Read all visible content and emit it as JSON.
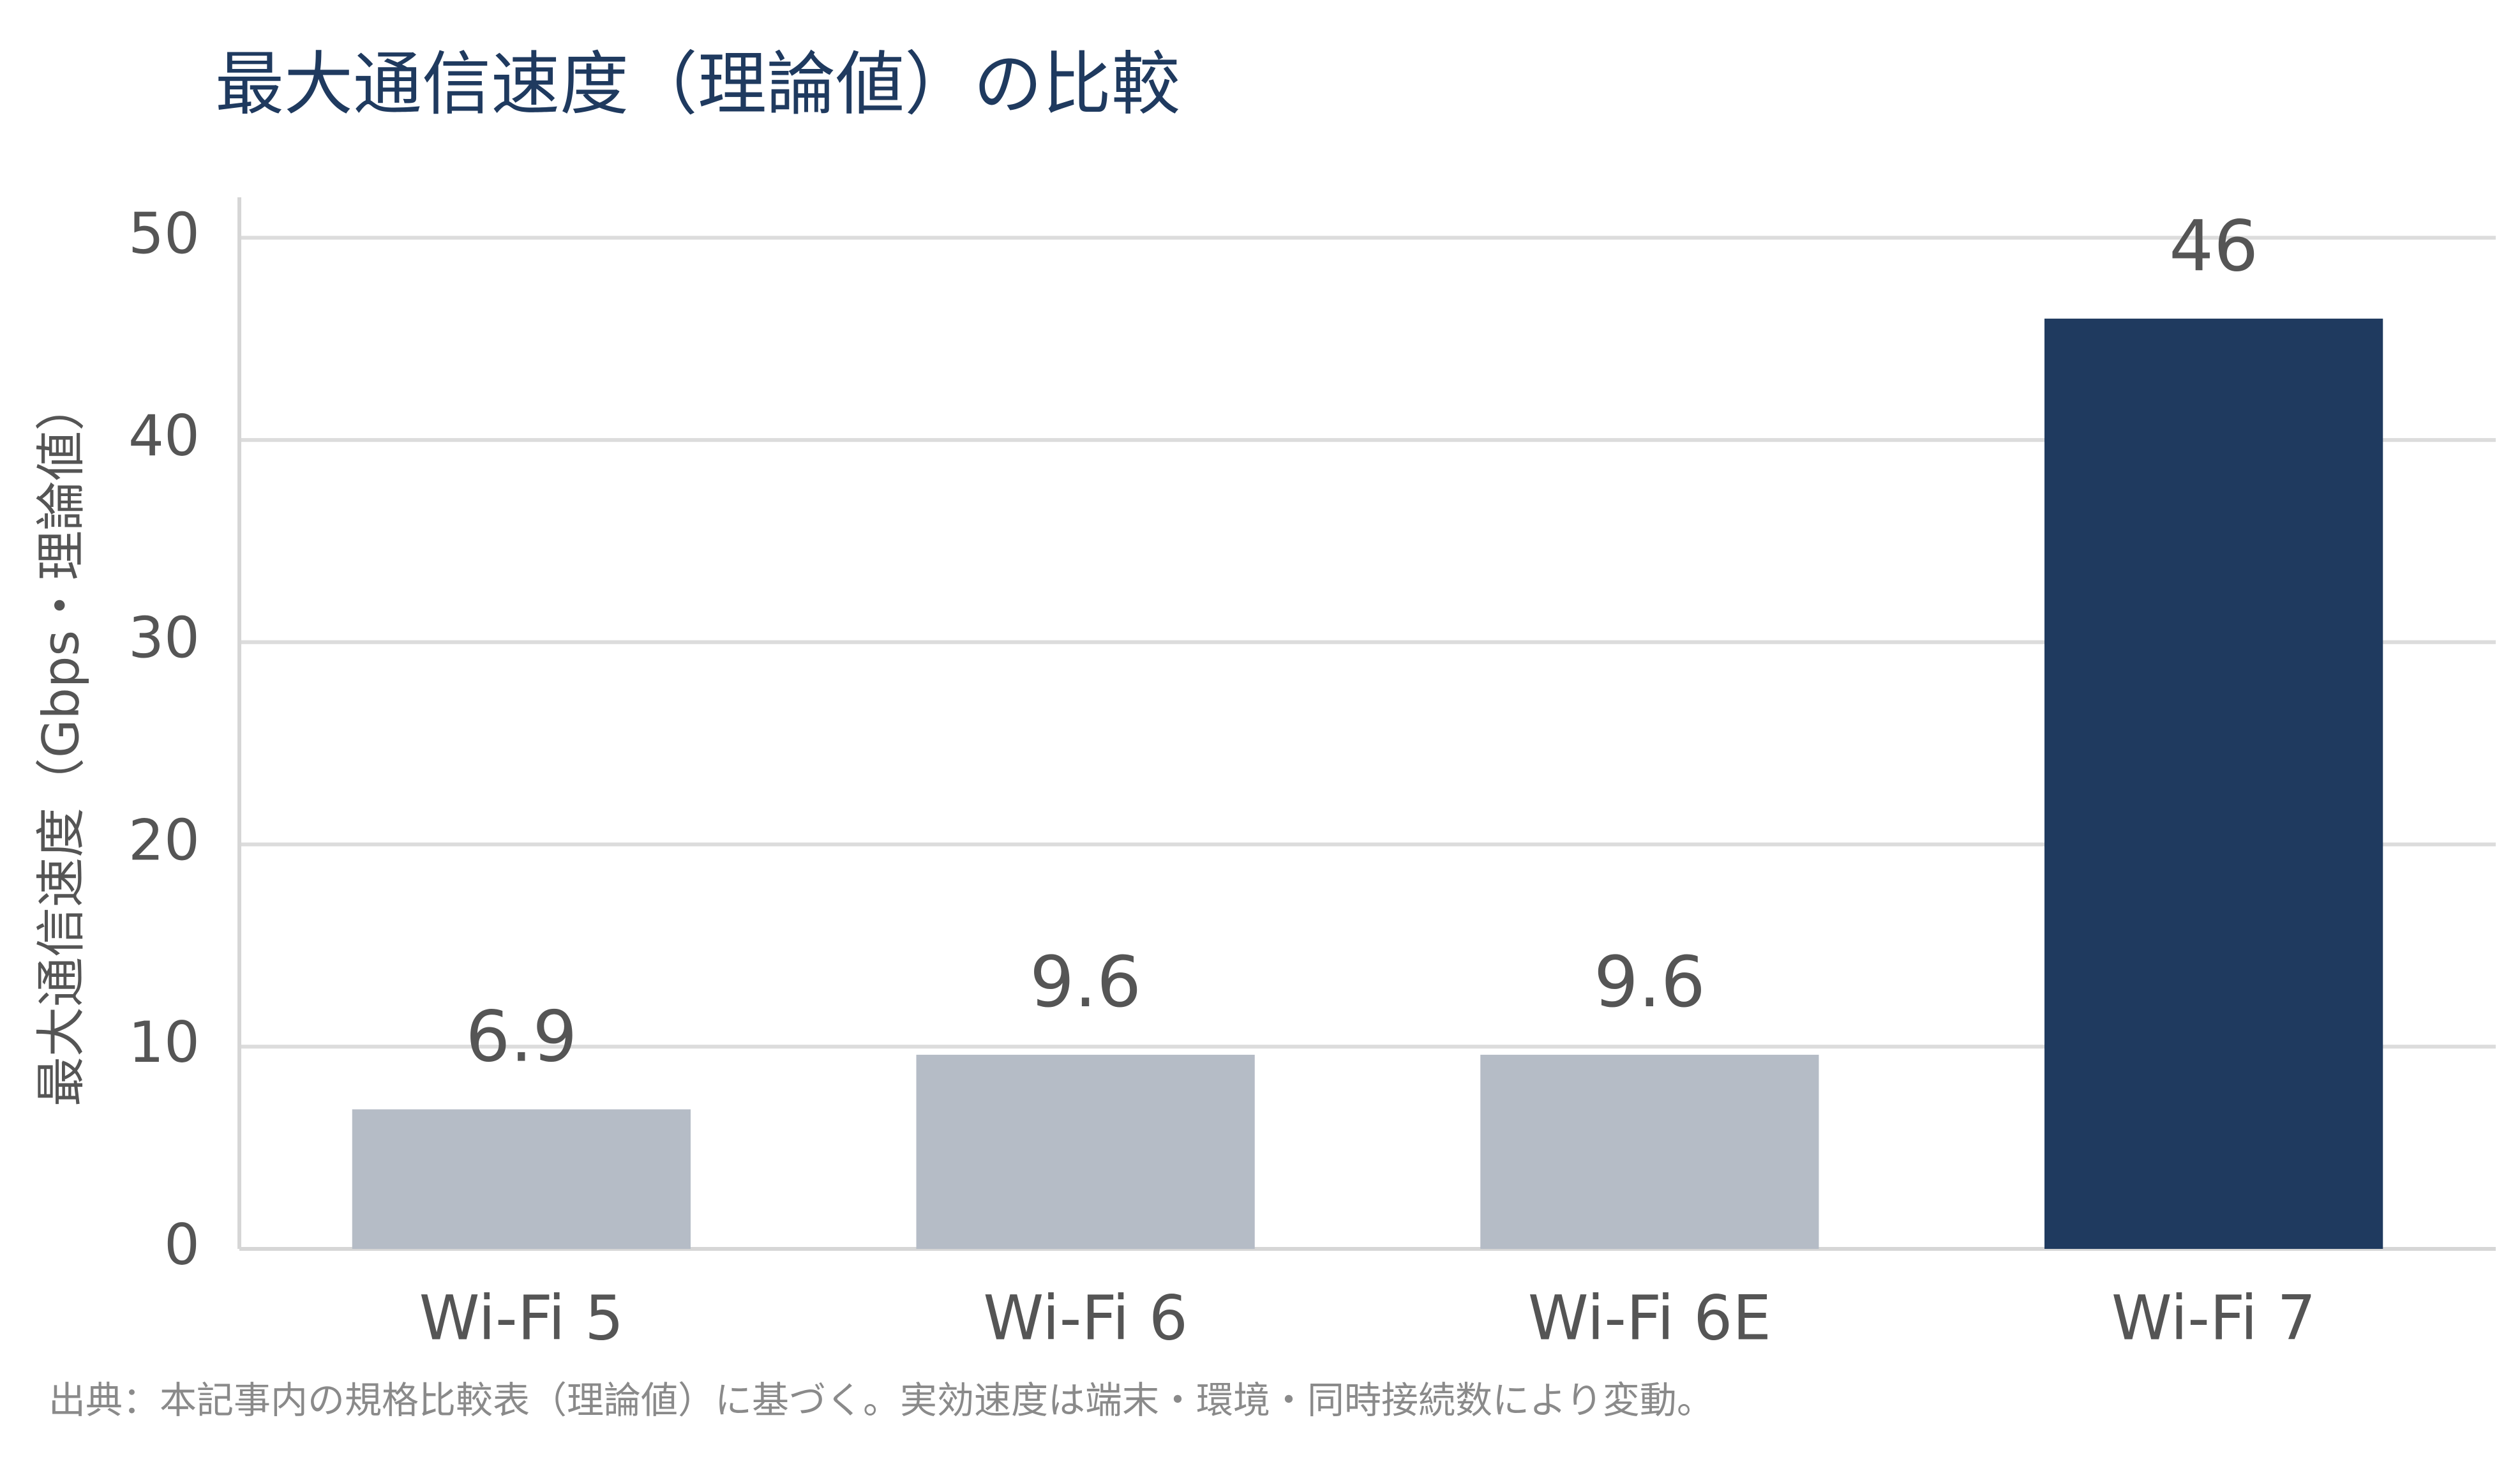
{
  "chart_data": {
    "type": "bar",
    "title": "最大通信速度（理論値）の比較",
    "y_label": "最大通信速度（Gbps・理論値）",
    "note": "出典：本記事内の規格比較表（理論値）に基づく。実効速度は端末・環境・同時接続数により変動。",
    "categories": [
      "Wi-Fi 5",
      "Wi-Fi 6",
      "Wi-Fi 6E",
      "Wi-Fi 7"
    ],
    "values": [
      6.9,
      9.6,
      9.6,
      46
    ],
    "colors": [
      "#b5bcc6",
      "#b5bcc6",
      "#b5bcc6",
      "#1f3a5f"
    ],
    "ylim": [
      0,
      52
    ],
    "yticks": [
      0,
      10,
      20,
      30,
      40,
      50
    ],
    "grid": true
  }
}
